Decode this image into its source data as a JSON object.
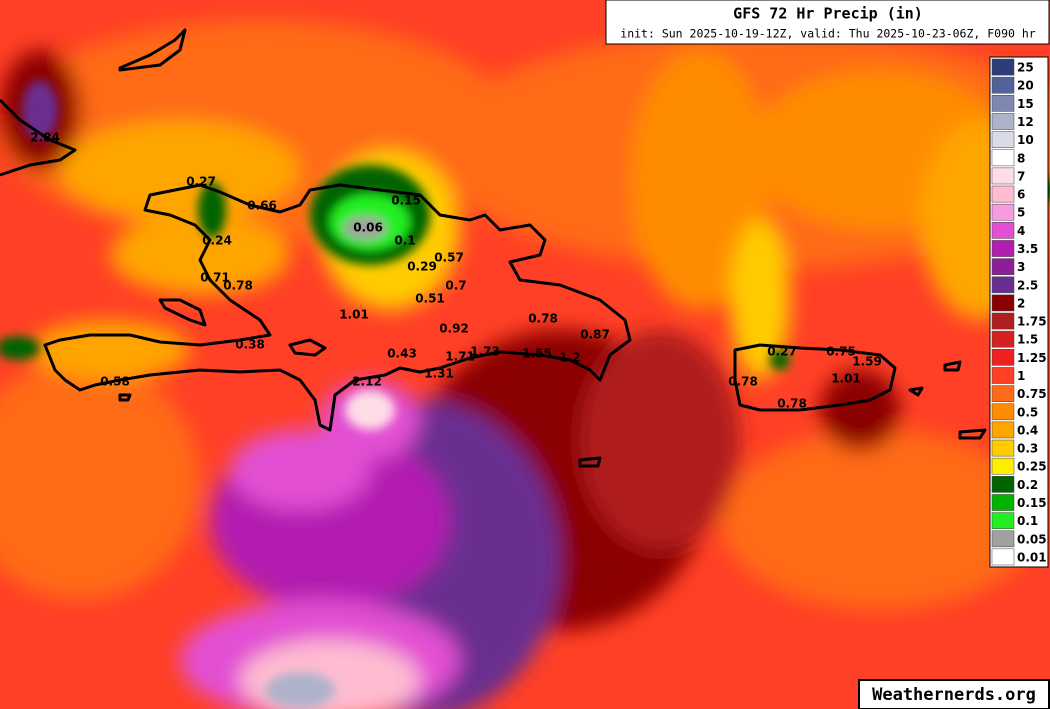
{
  "header": {
    "title": "GFS 72 Hr Precip (in)",
    "subtitle": "init: Sun 2025-10-19-12Z, valid: Thu 2025-10-23-06Z, F090 hr"
  },
  "legend": [
    {
      "label": 25,
      "color": "#2b3e7a"
    },
    {
      "label": 20,
      "color": "#52629a"
    },
    {
      "label": 15,
      "color": "#7f89b0"
    },
    {
      "label": 12,
      "color": "#aeb3cb"
    },
    {
      "label": 10,
      "color": "#d9dbe6"
    },
    {
      "label": 8,
      "color": "#ffffff"
    },
    {
      "label": 7,
      "color": "#ffdde6"
    },
    {
      "label": 6,
      "color": "#ffbcd0"
    },
    {
      "label": 5,
      "color": "#f79be0"
    },
    {
      "label": 4,
      "color": "#e24fd3"
    },
    {
      "label": 3.5,
      "color": "#b21fb0"
    },
    {
      "label": 3,
      "color": "#8c1e98"
    },
    {
      "label": 2.5,
      "color": "#6a2d91"
    },
    {
      "label": 2,
      "color": "#8b0000"
    },
    {
      "label": 1.75,
      "color": "#b01e1e"
    },
    {
      "label": 1.5,
      "color": "#d42222"
    },
    {
      "label": 1.25,
      "color": "#ee2020"
    },
    {
      "label": 1,
      "color": "#ff4026"
    },
    {
      "label": 0.75,
      "color": "#ff6a18"
    },
    {
      "label": 0.5,
      "color": "#ff8c00"
    },
    {
      "label": 0.4,
      "color": "#ffa500"
    },
    {
      "label": 0.3,
      "color": "#ffcc00"
    },
    {
      "label": 0.25,
      "color": "#ffee00"
    },
    {
      "label": 0.2,
      "color": "#006400"
    },
    {
      "label": 0.15,
      "color": "#00b400"
    },
    {
      "label": 0.1,
      "color": "#22ee22"
    },
    {
      "label": 0.05,
      "color": "#a0a0a0"
    },
    {
      "label": 0.01,
      "color": "#ffffff"
    }
  ],
  "point_labels": [
    2.84,
    0.27,
    0.66,
    0.24,
    0.71,
    0.78,
    0.38,
    0.58,
    0.15,
    0.06,
    0.1,
    0.57,
    0.29,
    0.7,
    0.51,
    1.01,
    0.92,
    0.43,
    1.71,
    1.73,
    1.31,
    2.12,
    0.78,
    0.87,
    1.55,
    1.2,
    0.27,
    0.75,
    1.59,
    0.78,
    1.01,
    0.78
  ],
  "watermark": "Weathernerds.org"
}
